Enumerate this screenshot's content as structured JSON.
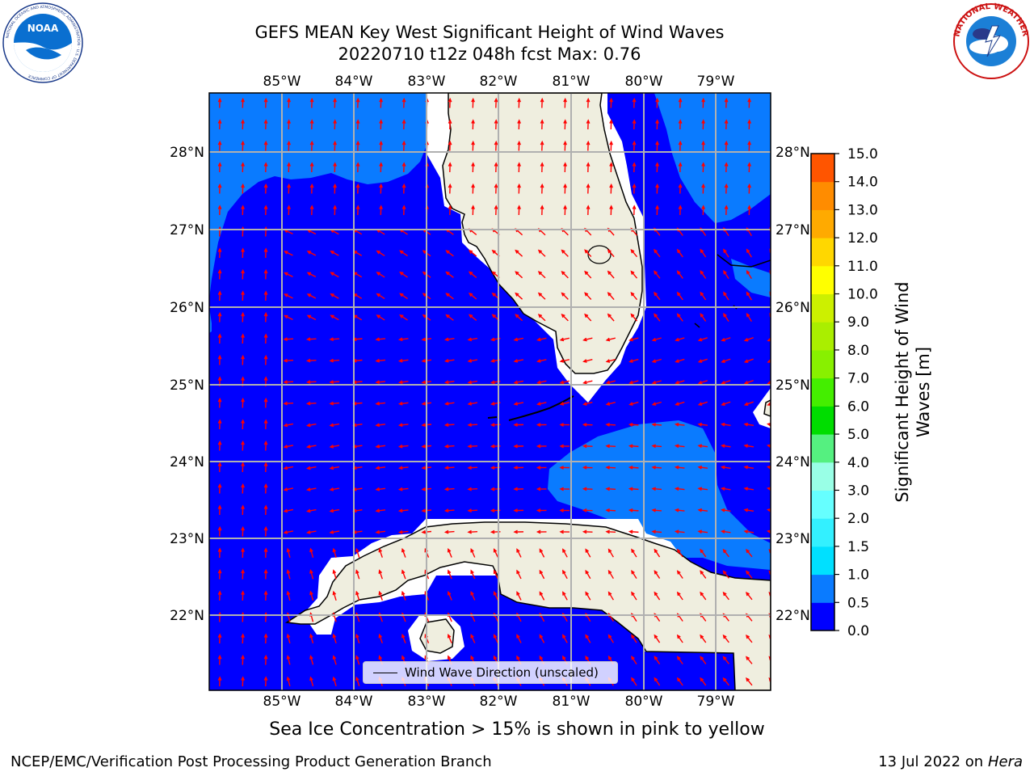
{
  "title": {
    "line1": "GEFS MEAN Key West Significant Height of Wind Waves",
    "line2": "20220710 t12z 048h fcst   Max: 0.76"
  },
  "logos": {
    "left": {
      "text": "NOAA",
      "ring_text": "NATIONAL OCEANIC AND ATMOSPHERIC ADMINISTRATION · U.S. DEPARTMENT OF COMMERCE"
    },
    "right": {
      "ring_text": "NATIONAL WEATHER SERVICE"
    }
  },
  "map": {
    "lon_labels": [
      "85°W",
      "84°W",
      "83°W",
      "82°W",
      "81°W",
      "80°W",
      "79°W"
    ],
    "lat_labels": [
      "28°N",
      "27°N",
      "26°N",
      "25°N",
      "24°N",
      "23°N",
      "22°N"
    ],
    "colors": {
      "ocean_low": "#0000ff",
      "ocean_mid": "#0a7bff",
      "land": "#efeedf",
      "masked": "#ffffff",
      "arrows": "#ff0000",
      "grid": "#b0b0b0",
      "coast": "#000000"
    }
  },
  "legend": {
    "label": "Wind Wave Direction (unscaled)"
  },
  "colorbar": {
    "label": "Significant Height of Wind Waves [m]",
    "ticks": [
      "0.0",
      "0.5",
      "1.0",
      "1.5",
      "2.0",
      "3.0",
      "4.0",
      "5.0",
      "6.0",
      "7.0",
      "8.0",
      "9.0",
      "10.0",
      "11.0",
      "12.0",
      "13.0",
      "14.0",
      "15.0"
    ],
    "colors": [
      "#0000ff",
      "#0a7bff",
      "#00e0ff",
      "#33f0ff",
      "#66ffff",
      "#99ffe6",
      "#55f080",
      "#00dd00",
      "#44ee00",
      "#88f000",
      "#aaee00",
      "#ccf000",
      "#ffff00",
      "#ffd700",
      "#ffaa00",
      "#ff8c00",
      "#ff5500",
      "#ff2200",
      "#ff0000"
    ]
  },
  "notes": {
    "sea_ice": "Sea Ice Concentration > 15% is shown in pink to yellow"
  },
  "footer": {
    "left": "NCEP/EMC/Verification Post Processing Product Generation Branch",
    "date": "13 Jul 2022 on ",
    "host": "Hera"
  }
}
